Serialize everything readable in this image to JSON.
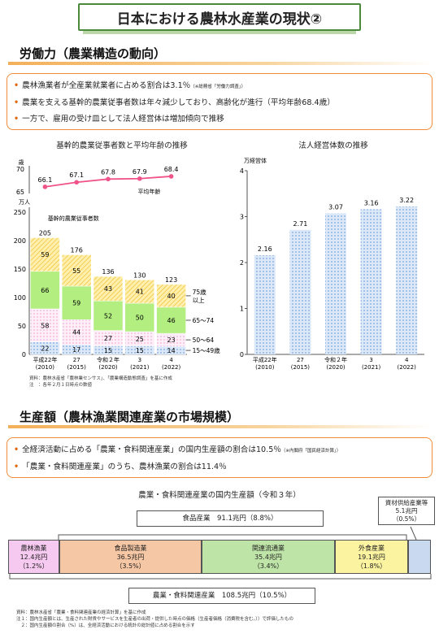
{
  "title": "日本における農林水産業の現状②",
  "labor": {
    "heading": "労働力（農業構造の動向）",
    "bullets": [
      {
        "text": "農林漁業者が全産業就業者に占める割合は3.1％",
        "small": "（※総務省「労働力調査」）"
      },
      {
        "text": "農業を支える基幹的農業従事者数は年々減少しており、高齢化が進行（平均年齢68.4歳）",
        "small": ""
      },
      {
        "text": "一方で、雇用の受け皿として法人経営体は増加傾向で推移",
        "small": ""
      }
    ]
  },
  "chart_left": {
    "title": "基幹的農業従事者数と平均年齢の推移",
    "age_unit": "歳",
    "count_unit": "万人",
    "series_label": "基幹的農業従事者数",
    "age_label": "平均年齢",
    "notes": [
      "資料：農林水産省「農林業センサス」、「農業構造動態調査」を基に作成",
      "注　：各年２月１日時点の数値"
    ]
  },
  "chart_right": {
    "title": "法人経営体数の推移",
    "unit": "万経営体",
    "categories": [
      "平成22年\n(2010)",
      "27\n(2015)",
      "令和２年\n(2020)",
      "3\n(2021)",
      "4\n(2022)"
    ],
    "values": [
      "2.16",
      "2.71",
      "3.07",
      "3.16",
      "3.22"
    ]
  },
  "chart_data": [
    {
      "type": "bar",
      "stacked": true,
      "title": "基幹的農業従事者数と平均年齢の推移",
      "ylabel": "万人",
      "ylim": [
        0,
        250
      ],
      "yticks": [
        0,
        50,
        100,
        150,
        200,
        250
      ],
      "categories": [
        "平成22年 (2010)",
        "27 (2015)",
        "令和２年 (2020)",
        "3 (2021)",
        "4 (2022)"
      ],
      "series": [
        {
          "name": "15～49歳",
          "values": [
            22,
            17,
            15,
            15,
            14
          ],
          "color": "#a8c4e8"
        },
        {
          "name": "50～64",
          "values": [
            58,
            44,
            27,
            25,
            23
          ],
          "color": "#f6d4ea"
        },
        {
          "name": "65～74",
          "values": [
            66,
            59,
            52,
            50,
            46
          ],
          "color": "#b3ee80"
        },
        {
          "name": "75歳以上",
          "values": [
            59,
            55,
            43,
            41,
            40
          ],
          "color": "#fbe07e"
        }
      ],
      "totals": [
        205,
        176,
        136,
        130,
        123
      ],
      "line": {
        "name": "平均年齢",
        "values": [
          66.1,
          67.1,
          67.8,
          67.9,
          68.4
        ],
        "ylim": [
          65,
          70
        ],
        "yticks": [
          65,
          70
        ],
        "color": "#f0528a"
      }
    },
    {
      "type": "bar",
      "title": "法人経営体数の推移",
      "ylabel": "万経営体",
      "ylim": [
        0,
        4
      ],
      "yticks": [
        0,
        1,
        2,
        3,
        4
      ],
      "categories": [
        "平成22年 (2010)",
        "27 (2015)",
        "令和２年 (2020)",
        "3 (2021)",
        "4 (2022)"
      ],
      "values": [
        2.16,
        2.71,
        3.07,
        3.16,
        3.22
      ],
      "color": "#a9c7ee"
    }
  ],
  "production": {
    "heading": "生産額（農林漁業関連産業の市場規模）",
    "bullets": [
      {
        "text": "全経済活動に占める「農業・食料関連産業」の国内生産額の割合は10.5％",
        "small": "（※内閣府「国民経済計算」）"
      },
      {
        "text": "「農業・食料関連産業」のうち、農林漁業の割合は11.4％",
        "small": ""
      }
    ],
    "diagram_title": "農業・食料関連産業の国内生産額（令和３年）",
    "food_industry": "食品産業　91.1兆円（8.8%）",
    "total": "農業・食料関連産業　108.5兆円（10.5%）",
    "supply": {
      "name": "資材供給産業等",
      "value": "5.1兆円",
      "pct": "（0.5%）"
    },
    "segments": [
      {
        "name": "農林漁業",
        "value": "12.4兆円",
        "pct": "（1.2%）",
        "color": "#f6c9f0"
      },
      {
        "name": "食品製造業",
        "value": "36.5兆円",
        "pct": "（3.5%）",
        "color": "#f6c7a4"
      },
      {
        "name": "関連流通業",
        "value": "35.4兆円",
        "pct": "（3.4%）",
        "color": "#bfe4a8"
      },
      {
        "name": "外食産業",
        "value": "19.1兆円",
        "pct": "（1.8%）",
        "color": "#fbf3a0"
      }
    ],
    "notes": [
      "資料：農林水産省「農業・食料関連産業の経済計算」を基に作成",
      "注１：国内生産額とは、生産された財貨やサービスを生産者の出荷・提供した時点の価格（生産者価格（消費税を含む。））で評価したもの",
      "　２：国内生産額の割合（%）は、全経済活動における統計の総計値に占める割合を示す"
    ]
  }
}
